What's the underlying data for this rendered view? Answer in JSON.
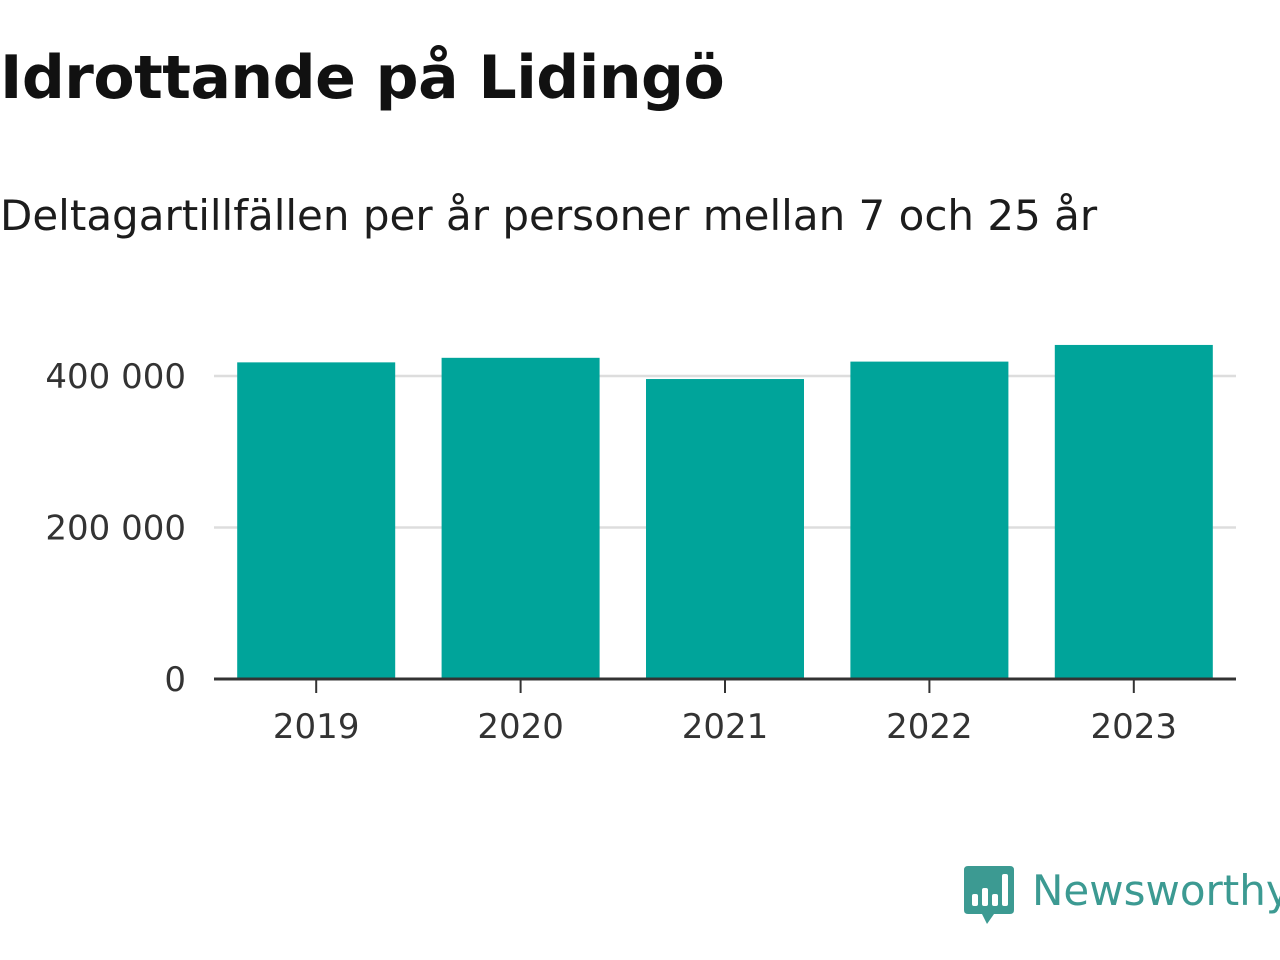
{
  "chart_data": {
    "type": "bar",
    "title": "Idrottande på Lidingö",
    "subtitle": "Deltagartillfällen per år personer mellan 7 och 25 år",
    "categories": [
      "2019",
      "2020",
      "2021",
      "2022",
      "2023"
    ],
    "values": [
      418000,
      424000,
      396000,
      419000,
      441000
    ],
    "xlabel": "",
    "ylabel": "",
    "ylim": [
      0,
      450000
    ],
    "yticks": [
      0,
      200000,
      400000
    ],
    "ytick_labels": [
      "0",
      "200 000",
      "400 000"
    ],
    "grid": true,
    "legend": "none",
    "bar_color": "#00a49a",
    "grid_color": "#dddddd",
    "axis_color": "#333333"
  },
  "brand": {
    "name": "Newsworthy",
    "color": "#3c9a92",
    "icon": "bar-chart-speech-bubble-icon"
  }
}
